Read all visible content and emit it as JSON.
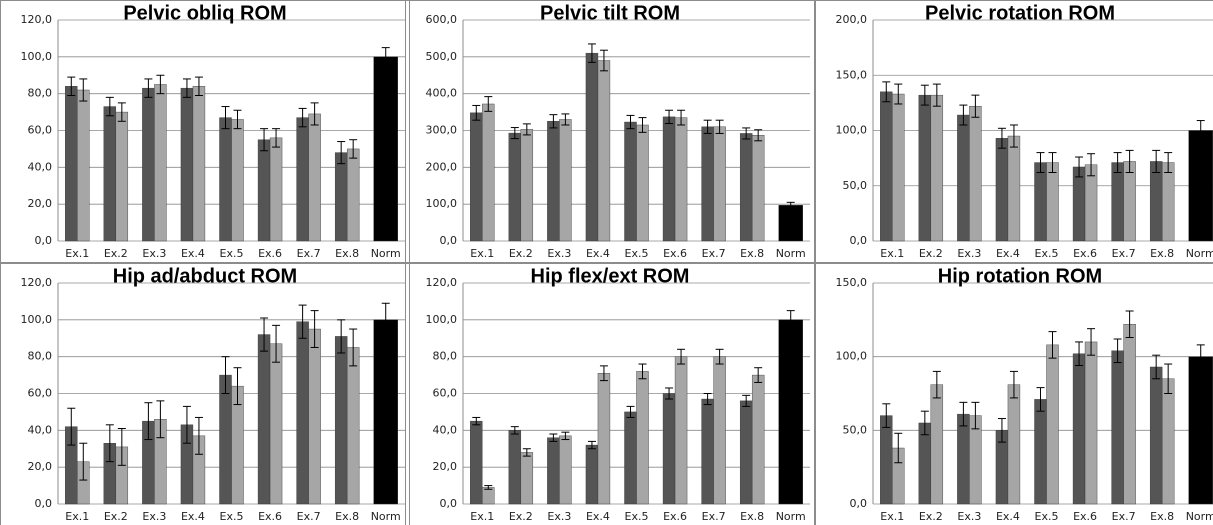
{
  "chart_data": [
    {
      "type": "bar",
      "title": "Pelvic obliq ROM",
      "categories": [
        "Ex.1",
        "Ex.2",
        "Ex.3",
        "Ex.4",
        "Ex.5",
        "Ex.6",
        "Ex.7",
        "Ex.8",
        "Norm"
      ],
      "series": [
        {
          "color": "#555555",
          "values": [
            84,
            73,
            83,
            83,
            67,
            55,
            67,
            48,
            null
          ],
          "errors": [
            5,
            5,
            5,
            5,
            6,
            6,
            5,
            6,
            null
          ]
        },
        {
          "color": "#a6a6a6",
          "values": [
            82,
            70,
            85,
            84,
            66,
            56,
            69,
            50,
            null
          ],
          "errors": [
            6,
            5,
            5,
            5,
            5,
            5,
            6,
            5,
            null
          ]
        },
        {
          "color": "#000000",
          "values": [
            null,
            null,
            null,
            null,
            null,
            null,
            null,
            null,
            100
          ],
          "errors": [
            null,
            null,
            null,
            null,
            null,
            null,
            null,
            null,
            5
          ]
        }
      ],
      "ylim": [
        0,
        120
      ],
      "yticks": [
        {
          "value": 0,
          "label": "0,0"
        },
        {
          "value": 20,
          "label": "20,0"
        },
        {
          "value": 40,
          "label": "40,0"
        },
        {
          "value": 60,
          "label": "60,0"
        },
        {
          "value": 80,
          "label": "80,0"
        },
        {
          "value": 100,
          "label": "100,0"
        },
        {
          "value": 120,
          "label": "120,0"
        }
      ],
      "grid": true
    },
    {
      "type": "bar",
      "title": "Pelvic tilt ROM",
      "categories": [
        "Ex.1",
        "Ex.2",
        "Ex.3",
        "Ex.4",
        "Ex.5",
        "Ex.6",
        "Ex.7",
        "Ex.8",
        "Norm"
      ],
      "series": [
        {
          "color": "#555555",
          "values": [
            348,
            293,
            325,
            510,
            323,
            337,
            310,
            292,
            null
          ],
          "errors": [
            20,
            15,
            18,
            25,
            18,
            18,
            18,
            15,
            null
          ]
        },
        {
          "color": "#a6a6a6",
          "values": [
            372,
            303,
            330,
            490,
            315,
            335,
            310,
            287,
            null
          ],
          "errors": [
            20,
            15,
            15,
            28,
            20,
            20,
            18,
            15,
            null
          ]
        },
        {
          "color": "#000000",
          "values": [
            null,
            null,
            null,
            null,
            null,
            null,
            null,
            null,
            97
          ],
          "errors": [
            null,
            null,
            null,
            null,
            null,
            null,
            null,
            null,
            8
          ]
        }
      ],
      "ylim": [
        0,
        600
      ],
      "yticks": [
        {
          "value": 0,
          "label": "0,0"
        },
        {
          "value": 100,
          "label": "100,0"
        },
        {
          "value": 200,
          "label": "200,0"
        },
        {
          "value": 300,
          "label": "300,0"
        },
        {
          "value": 400,
          "label": "400,0"
        },
        {
          "value": 500,
          "label": "500,0"
        },
        {
          "value": 600,
          "label": "600,0"
        }
      ],
      "grid": true
    },
    {
      "type": "bar",
      "title": "Pelvic rotation ROM",
      "categories": [
        "Ex.1",
        "Ex.2",
        "Ex.3",
        "Ex.4",
        "Ex.5",
        "Ex.6",
        "Ex.7",
        "Ex.8",
        "Norm"
      ],
      "series": [
        {
          "color": "#555555",
          "values": [
            135,
            132,
            114,
            93,
            71,
            67,
            71,
            72,
            null
          ],
          "errors": [
            9,
            9,
            9,
            9,
            9,
            9,
            9,
            10,
            null
          ]
        },
        {
          "color": "#a6a6a6",
          "values": [
            133,
            132,
            122,
            95,
            71,
            69,
            72,
            71,
            null
          ],
          "errors": [
            9,
            10,
            10,
            10,
            9,
            10,
            10,
            9,
            null
          ]
        },
        {
          "color": "#000000",
          "values": [
            null,
            null,
            null,
            null,
            null,
            null,
            null,
            null,
            100
          ],
          "errors": [
            null,
            null,
            null,
            null,
            null,
            null,
            null,
            null,
            9
          ]
        }
      ],
      "ylim": [
        0,
        200
      ],
      "yticks": [
        {
          "value": 0,
          "label": "0,0"
        },
        {
          "value": 50,
          "label": "50,0"
        },
        {
          "value": 100,
          "label": "100,0"
        },
        {
          "value": 150,
          "label": "150,0"
        },
        {
          "value": 200,
          "label": "200,0"
        }
      ],
      "grid": true
    },
    {
      "type": "bar",
      "title": "Hip ad/abduct ROM",
      "categories": [
        "Ex.1",
        "Ex.2",
        "Ex.3",
        "Ex.4",
        "Ex.5",
        "Ex.6",
        "Ex.7",
        "Ex.8",
        "Norm"
      ],
      "series": [
        {
          "color": "#555555",
          "values": [
            42,
            33,
            45,
            43,
            70,
            92,
            99,
            91,
            null
          ],
          "errors": [
            10,
            10,
            10,
            10,
            10,
            9,
            9,
            9,
            null
          ]
        },
        {
          "color": "#a6a6a6",
          "values": [
            23,
            31,
            46,
            37,
            64,
            87,
            95,
            85,
            null
          ],
          "errors": [
            10,
            10,
            10,
            10,
            10,
            10,
            10,
            10,
            null
          ]
        },
        {
          "color": "#000000",
          "values": [
            null,
            null,
            null,
            null,
            null,
            null,
            null,
            null,
            100
          ],
          "errors": [
            null,
            null,
            null,
            null,
            null,
            null,
            null,
            null,
            9
          ]
        }
      ],
      "ylim": [
        0,
        120
      ],
      "yticks": [
        {
          "value": 0,
          "label": "0,0"
        },
        {
          "value": 20,
          "label": "20,0"
        },
        {
          "value": 40,
          "label": "40,0"
        },
        {
          "value": 60,
          "label": "60,0"
        },
        {
          "value": 80,
          "label": "80,0"
        },
        {
          "value": 100,
          "label": "100,0"
        },
        {
          "value": 120,
          "label": "120,0"
        }
      ],
      "grid": true
    },
    {
      "type": "bar",
      "title": "Hip flex/ext ROM",
      "categories": [
        "Ex.1",
        "Ex.2",
        "Ex.3",
        "Ex.4",
        "Ex.5",
        "Ex.6",
        "Ex.7",
        "Ex.8",
        "Norm"
      ],
      "series": [
        {
          "color": "#555555",
          "values": [
            45,
            40,
            36,
            32,
            50,
            60,
            57,
            56,
            null
          ],
          "errors": [
            2,
            2,
            2,
            2,
            3,
            3,
            3,
            3,
            null
          ]
        },
        {
          "color": "#a6a6a6",
          "values": [
            9,
            28,
            37,
            71,
            72,
            80,
            80,
            70,
            null
          ],
          "errors": [
            1,
            2,
            2,
            4,
            4,
            4,
            4,
            4,
            null
          ]
        },
        {
          "color": "#000000",
          "values": [
            null,
            null,
            null,
            null,
            null,
            null,
            null,
            null,
            100
          ],
          "errors": [
            null,
            null,
            null,
            null,
            null,
            null,
            null,
            null,
            5
          ]
        }
      ],
      "ylim": [
        0,
        120
      ],
      "yticks": [
        {
          "value": 0,
          "label": "0,0"
        },
        {
          "value": 20,
          "label": "20,0"
        },
        {
          "value": 40,
          "label": "40,0"
        },
        {
          "value": 60,
          "label": "60,0"
        },
        {
          "value": 80,
          "label": "80,0"
        },
        {
          "value": 100,
          "label": "100,0"
        },
        {
          "value": 120,
          "label": "120,0"
        }
      ],
      "grid": true
    },
    {
      "type": "bar",
      "title": "Hip rotation ROM",
      "categories": [
        "Ex.1",
        "Ex.2",
        "Ex.3",
        "Ex.4",
        "Ex.5",
        "Ex.6",
        "Ex.7",
        "Ex.8",
        "Norm"
      ],
      "series": [
        {
          "color": "#555555",
          "values": [
            60,
            55,
            61,
            50,
            71,
            102,
            104,
            93,
            null
          ],
          "errors": [
            8,
            8,
            8,
            8,
            8,
            8,
            8,
            8,
            null
          ]
        },
        {
          "color": "#a6a6a6",
          "values": [
            38,
            81,
            60,
            81,
            108,
            110,
            122,
            85,
            null
          ],
          "errors": [
            10,
            9,
            9,
            9,
            9,
            9,
            9,
            10,
            null
          ]
        },
        {
          "color": "#000000",
          "values": [
            null,
            null,
            null,
            null,
            null,
            null,
            null,
            null,
            100
          ],
          "errors": [
            null,
            null,
            null,
            null,
            null,
            null,
            null,
            null,
            8
          ]
        }
      ],
      "ylim": [
        0,
        150
      ],
      "yticks": [
        {
          "value": 0,
          "label": "0,0"
        },
        {
          "value": 50,
          "label": "50,0"
        },
        {
          "value": 100,
          "label": "100,0"
        },
        {
          "value": 150,
          "label": "150,0"
        }
      ],
      "grid": true
    }
  ]
}
